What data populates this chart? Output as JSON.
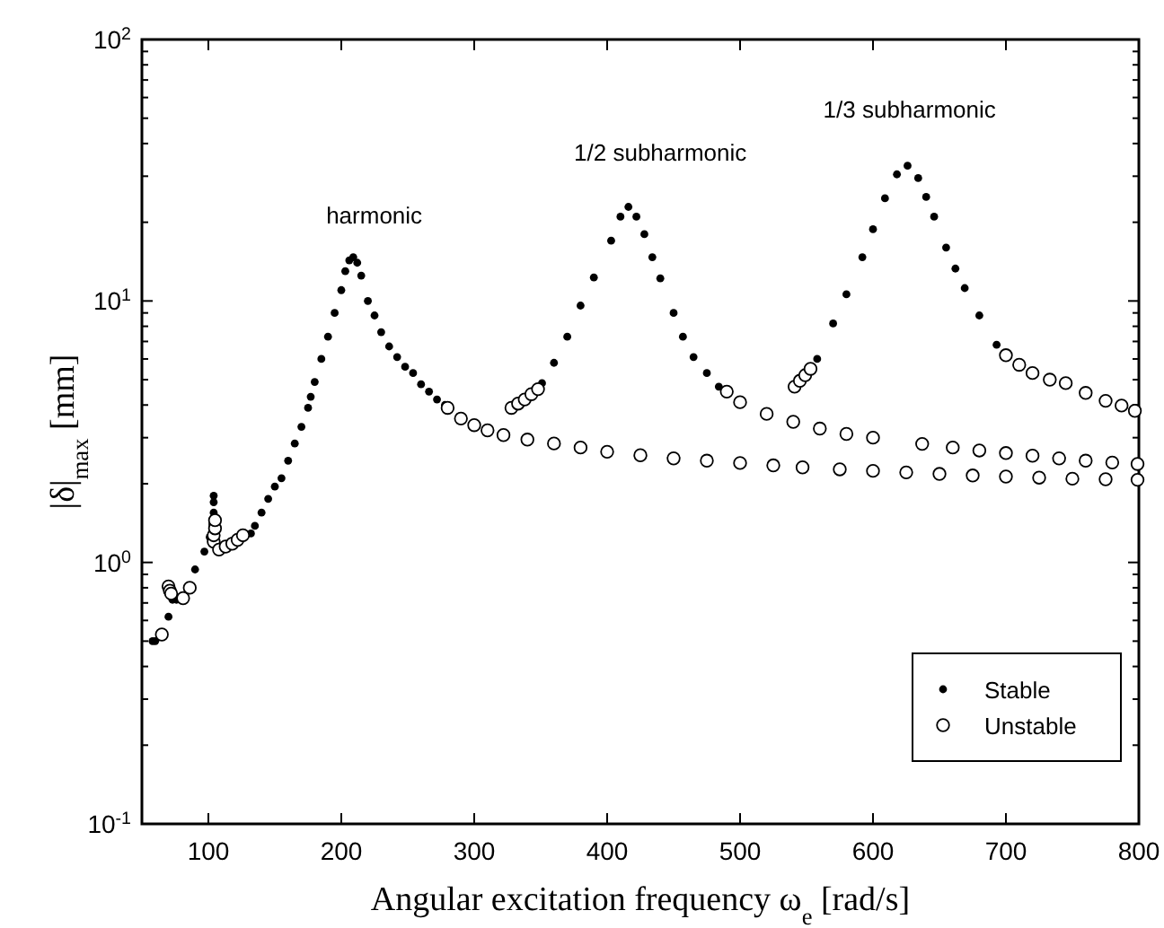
{
  "chart_data": {
    "type": "scatter",
    "xlabel": "Angular excitation frequency ω$_{e}$ [rad/s]",
    "ylabel": "|δ|$_{max}$ [mm]",
    "xlim": [
      50,
      800
    ],
    "xticks": [
      100,
      200,
      300,
      400,
      500,
      600,
      700,
      800
    ],
    "ylim": [
      0.1,
      100
    ],
    "yticks": [
      {
        "value": 0.1,
        "label": "10$^{-1}$"
      },
      {
        "value": 0.2,
        "label": null
      },
      {
        "value": 0.3,
        "label": null
      },
      {
        "value": 0.4,
        "label": null
      },
      {
        "value": 0.5,
        "label": null
      },
      {
        "value": 0.6,
        "label": null
      },
      {
        "value": 0.7,
        "label": null
      },
      {
        "value": 0.8,
        "label": null
      },
      {
        "value": 0.9,
        "label": null
      },
      {
        "value": 1,
        "label": "10$^{0}$"
      },
      {
        "value": 2,
        "label": null
      },
      {
        "value": 3,
        "label": null
      },
      {
        "value": 4,
        "label": null
      },
      {
        "value": 5,
        "label": null
      },
      {
        "value": 6,
        "label": null
      },
      {
        "value": 7,
        "label": null
      },
      {
        "value": 8,
        "label": null
      },
      {
        "value": 9,
        "label": null
      },
      {
        "value": 10,
        "label": "10$^{1}$"
      },
      {
        "value": 20,
        "label": null
      },
      {
        "value": 30,
        "label": null
      },
      {
        "value": 40,
        "label": null
      },
      {
        "value": 50,
        "label": null
      },
      {
        "value": 60,
        "label": null
      },
      {
        "value": 70,
        "label": null
      },
      {
        "value": 80,
        "label": null
      },
      {
        "value": 90,
        "label": null
      },
      {
        "value": 100,
        "label": "10$^{2}$"
      }
    ],
    "log": "y",
    "grid": false,
    "legend": "bottom right",
    "marker": "circle",
    "series": [
      {
        "name": "Stable",
        "color": "#000000",
        "x": [
          58,
          60,
          70,
          73,
          76,
          90,
          97,
          101,
          103,
          104,
          104,
          104,
          132,
          135,
          140,
          145,
          150,
          155,
          160,
          165,
          170,
          175,
          177,
          180,
          185,
          190,
          195,
          200,
          203,
          206,
          209,
          212,
          215,
          220,
          225,
          230,
          236,
          242,
          248,
          254,
          260,
          266,
          272,
          278,
          351,
          360,
          370,
          380,
          390,
          403,
          410,
          416,
          422,
          428,
          434,
          440,
          450,
          457,
          465,
          475,
          484,
          558,
          570,
          580,
          592,
          600,
          609,
          618,
          626,
          634,
          640,
          646,
          655,
          662,
          669,
          680,
          693
        ],
        "values": [
          0.5,
          0.5,
          0.62,
          0.72,
          0.72,
          0.94,
          1.1,
          1.25,
          1.4,
          1.55,
          1.7,
          1.8,
          1.29,
          1.38,
          1.55,
          1.75,
          1.95,
          2.1,
          2.45,
          2.85,
          3.3,
          3.9,
          4.3,
          4.9,
          6,
          7.3,
          9,
          11,
          13,
          14.3,
          14.7,
          14,
          12.5,
          10,
          8.8,
          7.6,
          6.7,
          6.1,
          5.6,
          5.3,
          4.8,
          4.5,
          4.2,
          4.0,
          4.85,
          5.8,
          7.3,
          9.6,
          12.3,
          17,
          21,
          22.9,
          21,
          18,
          14.7,
          12.2,
          9,
          7.3,
          6.1,
          5.3,
          4.7,
          6.0,
          8.2,
          10.6,
          14.7,
          18.8,
          24.7,
          30.5,
          32.9,
          29.5,
          25,
          21,
          16,
          13.3,
          11.2,
          8.8,
          6.8
        ]
      },
      {
        "name": "Unstable",
        "color": "#ffffff",
        "x": [
          65,
          70,
          71,
          72,
          81,
          86,
          104,
          104,
          105,
          105,
          108,
          113,
          118,
          122,
          126,
          280,
          290,
          300,
          310,
          322,
          340,
          360,
          380,
          400,
          425,
          450,
          475,
          500,
          525,
          547,
          575,
          600,
          625,
          650,
          675,
          700,
          725,
          750,
          775,
          799,
          328,
          333,
          338,
          343,
          348,
          490,
          500,
          520,
          540,
          560,
          580,
          600,
          637,
          660,
          680,
          700,
          720,
          740,
          760,
          780,
          799,
          541,
          545,
          549,
          553,
          700,
          710,
          720,
          733,
          745,
          760,
          775,
          787,
          797
        ],
        "values": [
          0.53,
          0.81,
          0.78,
          0.76,
          0.73,
          0.8,
          1.2,
          1.27,
          1.35,
          1.45,
          1.12,
          1.15,
          1.18,
          1.22,
          1.27,
          3.9,
          3.55,
          3.35,
          3.2,
          3.07,
          2.95,
          2.85,
          2.75,
          2.65,
          2.57,
          2.5,
          2.45,
          2.4,
          2.35,
          2.31,
          2.27,
          2.24,
          2.21,
          2.18,
          2.15,
          2.13,
          2.11,
          2.09,
          2.08,
          2.07,
          3.9,
          4.05,
          4.2,
          4.4,
          4.6,
          4.5,
          4.1,
          3.7,
          3.45,
          3.25,
          3.1,
          3.0,
          2.84,
          2.75,
          2.68,
          2.62,
          2.56,
          2.5,
          2.45,
          2.41,
          2.38,
          4.7,
          4.95,
          5.2,
          5.5,
          6.2,
          5.7,
          5.3,
          5.0,
          4.85,
          4.45,
          4.15,
          3.98,
          3.8
        ]
      }
    ],
    "annotations": [
      "harmonic",
      "1/2 subharmonic",
      "1/3 subharmonic"
    ]
  }
}
